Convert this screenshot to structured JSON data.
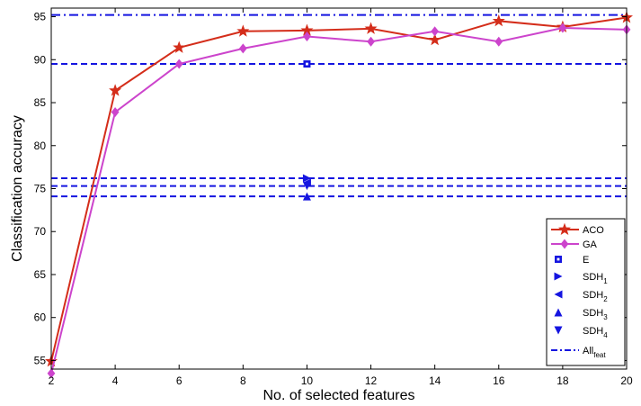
{
  "chart_data": {
    "type": "line",
    "xlabel": "No. of selected features",
    "ylabel": "Classification accuracy",
    "xlim": [
      2,
      20
    ],
    "ylim": [
      54,
      96
    ],
    "xticks": [
      2,
      4,
      6,
      8,
      10,
      12,
      14,
      16,
      18,
      20
    ],
    "yticks": [
      55,
      60,
      65,
      70,
      75,
      80,
      85,
      90,
      95
    ],
    "grid": false,
    "legend_position": "bottom-right",
    "series": [
      {
        "name": "ACO",
        "kind": "line",
        "color": "#d42d1a",
        "marker": "star",
        "x": [
          2,
          4,
          6,
          8,
          10,
          12,
          14,
          16,
          18,
          20
        ],
        "y": [
          54.9,
          86.4,
          91.4,
          93.3,
          93.4,
          93.6,
          92.3,
          94.5,
          93.8,
          94.9
        ]
      },
      {
        "name": "GA",
        "kind": "line",
        "color": "#cc44cc",
        "marker": "diamond",
        "x": [
          2,
          4,
          6,
          8,
          10,
          12,
          14,
          16,
          18,
          20
        ],
        "y": [
          53.5,
          83.9,
          89.5,
          91.3,
          92.7,
          92.1,
          93.3,
          92.1,
          93.7,
          93.5
        ]
      }
    ],
    "points": [
      {
        "name": "E",
        "legend": "E",
        "x": 10,
        "y": 89.5,
        "marker": "square",
        "color": "#1515e0"
      },
      {
        "name": "SDH1",
        "legend": "SDH",
        "sub": "1",
        "x": 10,
        "y": 76.2,
        "marker": "triangle-right",
        "color": "#1515e0"
      },
      {
        "name": "SDH2",
        "legend": "SDH",
        "sub": "2",
        "x": 10,
        "y": 75.7,
        "marker": "triangle-left",
        "color": "#1515e0"
      },
      {
        "name": "SDH3",
        "legend": "SDH",
        "sub": "3",
        "x": 10,
        "y": 74.1,
        "marker": "triangle-up",
        "color": "#1515e0"
      },
      {
        "name": "SDH4",
        "legend": "SDH",
        "sub": "4",
        "x": 10,
        "y": 75.3,
        "marker": "triangle-down",
        "color": "#1515e0"
      }
    ],
    "hlines": [
      {
        "y": 89.5,
        "style": "dashed",
        "color": "#1515e0"
      },
      {
        "y": 76.2,
        "style": "dashed",
        "color": "#1515e0"
      },
      {
        "y": 75.3,
        "style": "dashed",
        "color": "#1515e0"
      },
      {
        "y": 74.1,
        "style": "dashed",
        "color": "#1515e0"
      },
      {
        "y": 95.2,
        "style": "dashdot",
        "color": "#1515e0"
      }
    ],
    "legend": [
      {
        "label": "ACO",
        "sub": "",
        "marker": "star",
        "line": "solid",
        "color": "#d42d1a"
      },
      {
        "label": "GA",
        "sub": "",
        "marker": "diamond",
        "line": "solid",
        "color": "#cc44cc"
      },
      {
        "label": "E",
        "sub": "",
        "marker": "square",
        "line": "none",
        "color": "#1515e0"
      },
      {
        "label": "SDH",
        "sub": "1",
        "marker": "triangle-right",
        "line": "none",
        "color": "#1515e0"
      },
      {
        "label": "SDH",
        "sub": "2",
        "marker": "triangle-left",
        "line": "none",
        "color": "#1515e0"
      },
      {
        "label": "SDH",
        "sub": "3",
        "marker": "triangle-up",
        "line": "none",
        "color": "#1515e0"
      },
      {
        "label": "SDH",
        "sub": "4",
        "marker": "triangle-down",
        "line": "none",
        "color": "#1515e0"
      },
      {
        "label": "All",
        "sub": "feat",
        "marker": "none",
        "line": "dashdot",
        "color": "#1515e0"
      }
    ]
  }
}
